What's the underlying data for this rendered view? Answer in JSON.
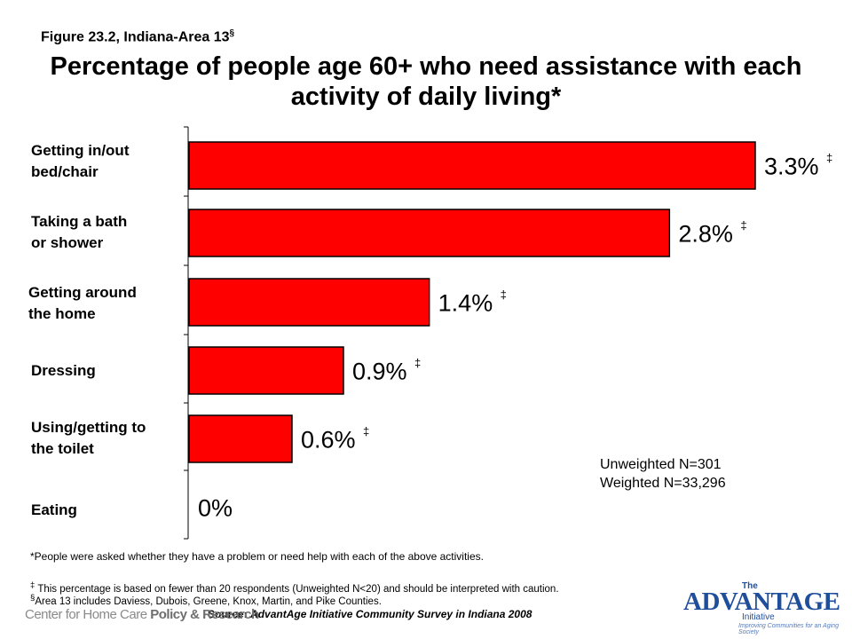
{
  "figure_label": "Figure 23.2, Indiana-Area 13",
  "figure_label_mark": "§",
  "chart_data": {
    "type": "bar",
    "orientation": "horizontal",
    "title": "Percentage of people age 60+ who need assistance with each activity of daily living*",
    "categories": [
      "Getting in/out\nbed/chair",
      "Taking a bath\nor shower",
      "Getting around\nthe home",
      "Dressing",
      "Using/getting to\nthe toilet",
      "Eating"
    ],
    "values": [
      3.3,
      2.8,
      1.4,
      0.9,
      0.6,
      0
    ],
    "data_labels": [
      "3.3%",
      "2.8%",
      "1.4%",
      "0.9%",
      "0.6%",
      "0%"
    ],
    "label_marks": [
      "‡",
      "‡",
      "‡",
      "‡",
      "‡",
      ""
    ],
    "unit": "%",
    "xlim": [
      0,
      3.3
    ],
    "bar_color": "#ff0000",
    "grid": false,
    "xaxis_visible": false
  },
  "sample_note": {
    "line1": "Unweighted N=301",
    "line2": "Weighted N=33,296"
  },
  "footnotes": {
    "main": "*People were asked whether they have a problem or need help with each of the above activities.",
    "dagger_mark": "‡",
    "dagger": "This percentage is based on fewer than 20 respondents (Unweighted N<20) and should be interpreted with caution.",
    "section_mark": "§",
    "section": "Area 13 includes Daviess, Dubois, Greene, Knox, Martin, and Pike Counties."
  },
  "source": {
    "prefix": "Source:",
    "text": "AdvantAge Initiative Community Survey in Indiana 2008"
  },
  "logos": {
    "left": {
      "part1": "Center for Home Care ",
      "part2": "Policy & Research"
    },
    "right": {
      "the": "The",
      "main": "ADVANTAGE",
      "sub": "Initiative",
      "tagline": "Improving Communities for an Aging Society"
    }
  }
}
